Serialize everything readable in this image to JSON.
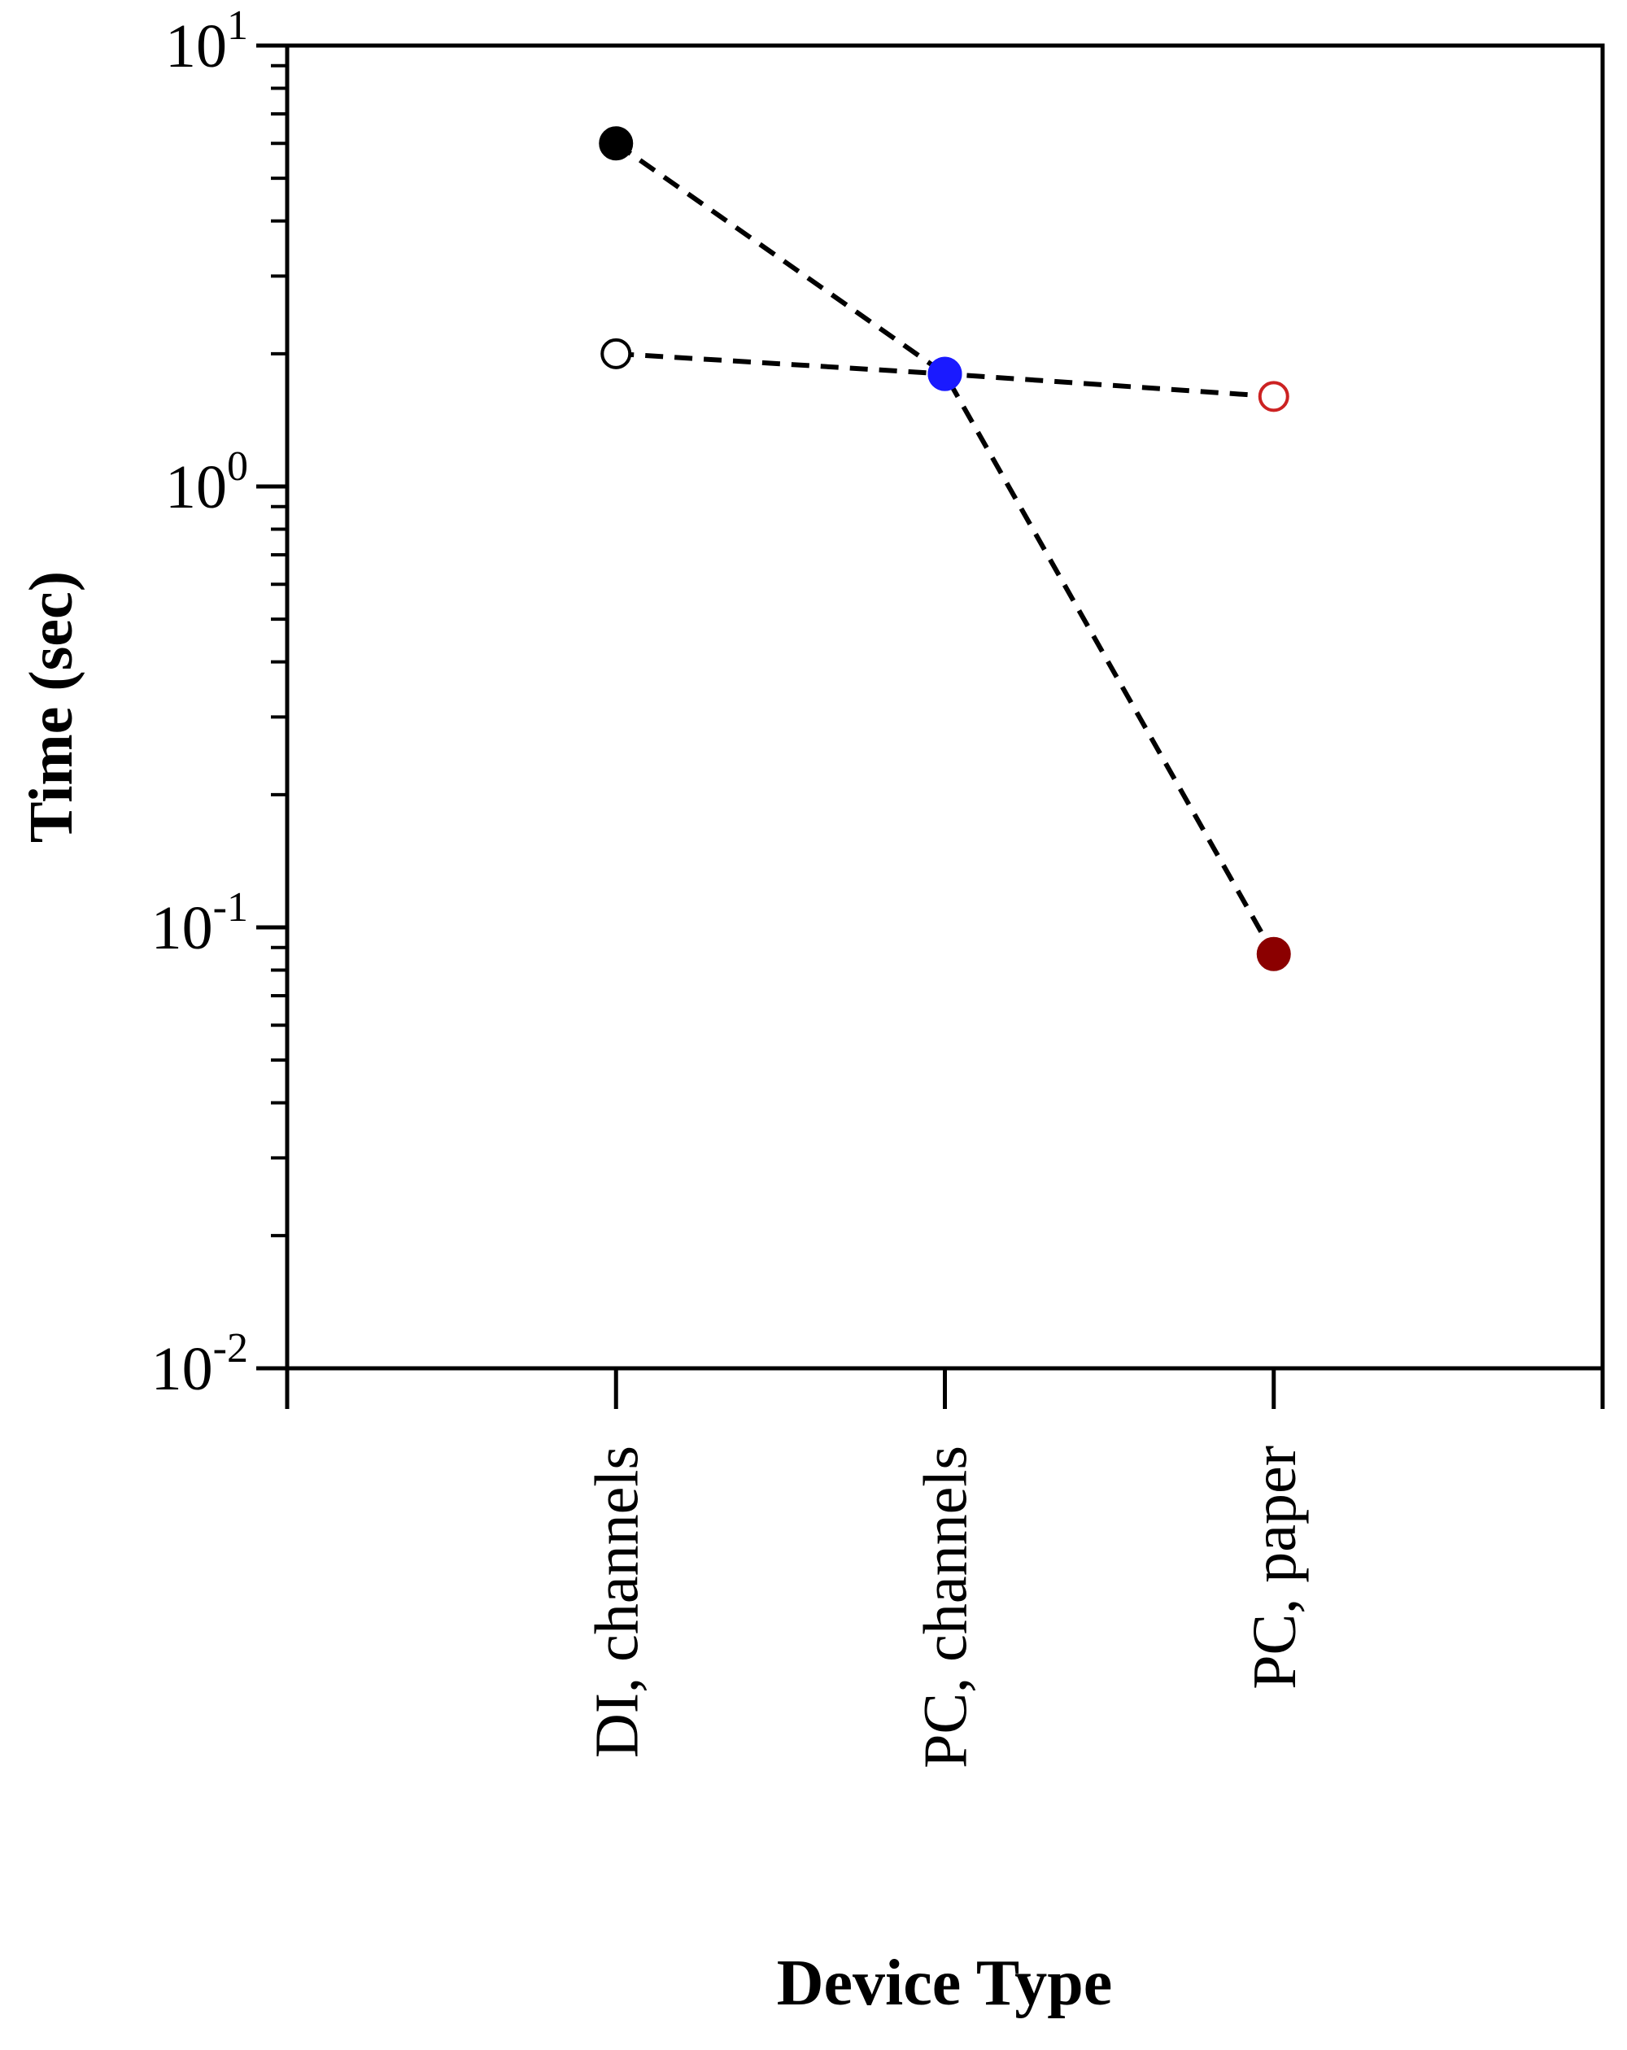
{
  "chart_data": {
    "type": "scatter",
    "xlabel": "Device Type",
    "ylabel": "Time (sec)",
    "categories": [
      "DI, channels",
      "PC, channels",
      "PC, paper"
    ],
    "yscale": "log",
    "ylim": [
      0.01,
      10
    ],
    "yticks": [
      {
        "base": "10",
        "exp": "1",
        "value": 10
      },
      {
        "base": "10",
        "exp": "0",
        "value": 1
      },
      {
        "base": "10",
        "exp": "-1",
        "value": 0.1
      },
      {
        "base": "10",
        "exp": "-2",
        "value": 0.01
      }
    ],
    "grid": false,
    "series": [
      {
        "line": "dashed",
        "points": [
          {
            "category": "DI, channels",
            "y": 6.0,
            "marker": "filled",
            "color": "#000000"
          },
          {
            "category": "PC, channels",
            "y": 1.8,
            "marker": "filled",
            "color": "#1a1aff"
          },
          {
            "category": "PC, paper",
            "y": 0.087,
            "marker": "filled",
            "color": "#8b0000"
          }
        ]
      },
      {
        "line": "dashed",
        "points": [
          {
            "category": "DI, channels",
            "y": 2.0,
            "marker": "open",
            "color": "#000000"
          },
          {
            "category": "PC, channels",
            "y": 1.8,
            "marker": "filled",
            "color": "#1a1aff"
          },
          {
            "category": "PC, paper",
            "y": 1.6,
            "marker": "open",
            "color": "#cc2222"
          }
        ]
      }
    ]
  }
}
